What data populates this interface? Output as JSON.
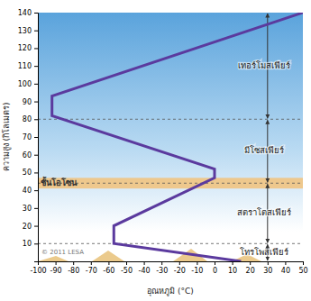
{
  "chart_data": {
    "type": "line",
    "x_label": "อุณหภูมิ (°C)",
    "y_label": "ความสูง (กิโลเมตร)",
    "x": [
      15,
      -57,
      -57,
      0,
      0,
      -92,
      -92,
      50
    ],
    "values": [
      0,
      10,
      20,
      47,
      52,
      82,
      93,
      140
    ],
    "color": "#5b3a9e",
    "xlim": [
      -100,
      50
    ],
    "ylim": [
      0,
      140
    ],
    "xticks": [
      -100,
      -90,
      -80,
      -70,
      -60,
      -50,
      -40,
      -30,
      -20,
      -10,
      0,
      10,
      20,
      30,
      40,
      50
    ],
    "yticks": [
      10,
      20,
      30,
      40,
      50,
      60,
      70,
      80,
      90,
      100,
      110,
      120,
      130,
      140
    ],
    "layers": [
      {
        "label": "โทรโพสเฟียร์",
        "bottom": 0,
        "top": 10
      },
      {
        "label": "สตราโตสเฟียร์",
        "bottom": 10,
        "top": 44
      },
      {
        "label": "มีโซสเฟียร์",
        "bottom": 44,
        "top": 80
      },
      {
        "label": "เทอร์โมสเฟียร์",
        "bottom": 80,
        "top": 140
      }
    ],
    "layer_axis_x": 30,
    "ozone": {
      "label": "ชั้นโอโซน",
      "bottom": 41,
      "top": 47
    },
    "credit": "© 2011 LESA"
  }
}
